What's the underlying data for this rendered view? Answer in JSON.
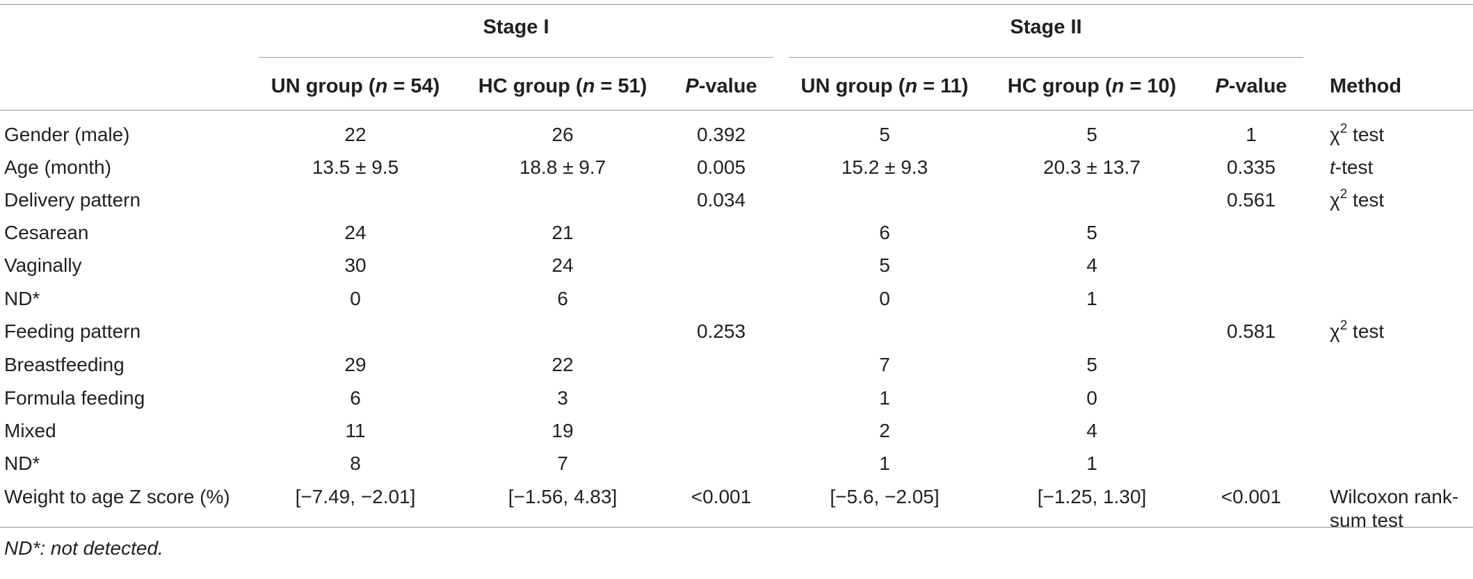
{
  "table": {
    "group_headers": [
      {
        "label": "Stage I"
      },
      {
        "label": "Stage II"
      }
    ],
    "column_headers": {
      "stage1_un": {
        "prefix": "UN group (",
        "n_letter": "n",
        "suffix": " = 54)"
      },
      "stage1_hc": {
        "prefix": "HC group (",
        "n_letter": "n",
        "suffix": " = 51)"
      },
      "stage1_p": {
        "p_letter": "P",
        "suffix": "-value"
      },
      "stage2_un": {
        "prefix": "UN group (",
        "n_letter": "n",
        "suffix": " = 11)"
      },
      "stage2_hc": {
        "prefix": "HC group (",
        "n_letter": "n",
        "suffix": " = 10)"
      },
      "stage2_p": {
        "p_letter": "P",
        "suffix": "-value"
      },
      "method": "Method"
    },
    "rows": [
      {
        "label": "Gender (male)",
        "s1_un": "22",
        "s1_hc": "26",
        "s1_p": "0.392",
        "s2_un": "5",
        "s2_hc": "5",
        "s2_p": "1",
        "method": "χ",
        "method_sup": "2",
        "method_rest": " test"
      },
      {
        "label": "Age (month)",
        "s1_un": "13.5 ± 9.5",
        "s1_hc": "18.8 ± 9.7",
        "s1_p": "0.005",
        "s2_un": "15.2 ± 9.3",
        "s2_hc": "20.3 ± 13.7",
        "s2_p": "0.335",
        "method_italic": "t",
        "method_rest": "-test"
      },
      {
        "label": "Delivery pattern",
        "s1_un": "",
        "s1_hc": "",
        "s1_p": "0.034",
        "s2_un": "",
        "s2_hc": "",
        "s2_p": "0.561",
        "method": "χ",
        "method_sup": "2",
        "method_rest": " test"
      },
      {
        "label": "Cesarean",
        "s1_un": "24",
        "s1_hc": "21",
        "s1_p": "",
        "s2_un": "6",
        "s2_hc": "5",
        "s2_p": ""
      },
      {
        "label": "Vaginally",
        "s1_un": "30",
        "s1_hc": "24",
        "s1_p": "",
        "s2_un": "5",
        "s2_hc": "4",
        "s2_p": ""
      },
      {
        "label": "ND*",
        "s1_un": "0",
        "s1_hc": "6",
        "s1_p": "",
        "s2_un": "0",
        "s2_hc": "1",
        "s2_p": ""
      },
      {
        "label": "Feeding pattern",
        "s1_un": "",
        "s1_hc": "",
        "s1_p": "0.253",
        "s2_un": "",
        "s2_hc": "",
        "s2_p": "0.581",
        "method": "χ",
        "method_sup": "2",
        "method_rest": " test"
      },
      {
        "label": "Breastfeeding",
        "s1_un": "29",
        "s1_hc": "22",
        "s1_p": "",
        "s2_un": "7",
        "s2_hc": "5",
        "s2_p": ""
      },
      {
        "label": "Formula feeding",
        "s1_un": "6",
        "s1_hc": "3",
        "s1_p": "",
        "s2_un": "1",
        "s2_hc": "0",
        "s2_p": ""
      },
      {
        "label": "Mixed",
        "s1_un": "11",
        "s1_hc": "19",
        "s1_p": "",
        "s2_un": "2",
        "s2_hc": "4",
        "s2_p": ""
      },
      {
        "label": "ND*",
        "s1_un": "8",
        "s1_hc": "7",
        "s1_p": "",
        "s2_un": "1",
        "s2_hc": "1",
        "s2_p": ""
      },
      {
        "label": "Weight to age Z score (%)",
        "s1_un": "[−7.49, −2.01]",
        "s1_hc": "[−1.56, 4.83]",
        "s1_p": "<0.001",
        "s2_un": "[−5.6, −2.05]",
        "s2_hc": "[−1.25, 1.30]",
        "s2_p": "<0.001",
        "method_line1": "Wilcoxon rank-",
        "method_line2": "sum test"
      }
    ],
    "footnote": "ND*: not detected."
  }
}
